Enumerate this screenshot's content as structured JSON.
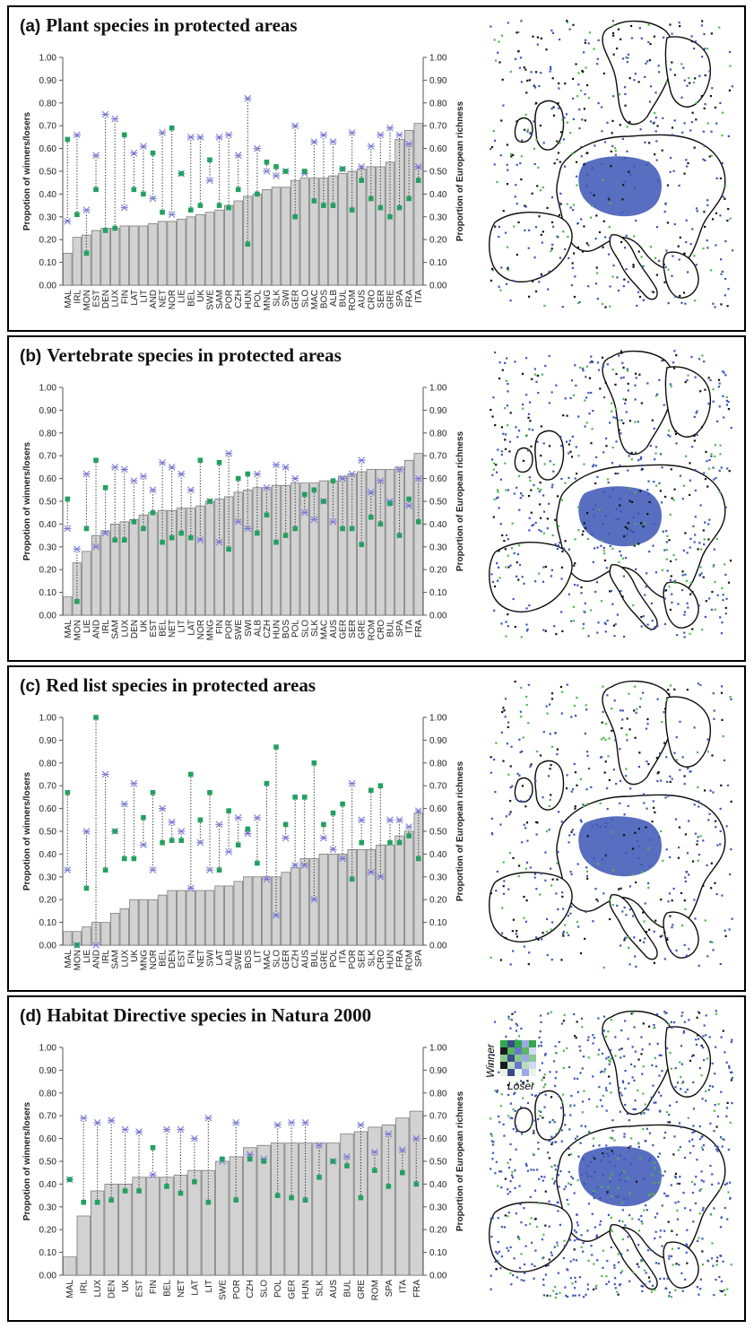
{
  "legend": {
    "winner": "Winner",
    "loser": "Loser"
  },
  "colors": {
    "bar_fill": "#d2d2d2",
    "bar_stroke": "#6e6e6e",
    "winner": "#23a060",
    "loser": "#7878d8",
    "map_blue": "#3b55b5",
    "map_green": "#4fb84a",
    "map_outline": "#0c0c0c"
  },
  "icons": {
    "winner_marker": "green-square-marker",
    "loser_marker": "blue-asterisk-marker"
  },
  "chart_data": [
    {
      "type": "bar",
      "label": "(a)",
      "title": "Plant species in protected areas",
      "ylabel": "Propotion of winners/losers",
      "y2label": "Proportion of European richness",
      "ylim": [
        0,
        1
      ],
      "yticks": [
        "0.00",
        "0.10",
        "0.20",
        "0.30",
        "0.40",
        "0.50",
        "0.60",
        "0.70",
        "0.80",
        "0.90",
        "1.00"
      ],
      "categories": [
        "MAL",
        "IRL",
        "MON",
        "EST",
        "DEN",
        "LUX",
        "FIN",
        "LAT",
        "LIT",
        "AND",
        "NET",
        "NOR",
        "LIE",
        "BEL",
        "UK",
        "SWE",
        "SAM",
        "POR",
        "CZH",
        "HUN",
        "POL",
        "MNG",
        "SLK",
        "SWI",
        "GER",
        "SLO",
        "MAC",
        "BOS",
        "ALB",
        "BUL",
        "ROM",
        "AUS",
        "CRO",
        "SER",
        "GRE",
        "SPA",
        "FRA",
        "ITA"
      ],
      "series": [
        {
          "values": [
            0.14,
            0.21,
            0.22,
            0.24,
            0.25,
            0.25,
            0.26,
            0.26,
            0.26,
            0.27,
            0.28,
            0.28,
            0.29,
            0.3,
            0.31,
            0.32,
            0.33,
            0.35,
            0.37,
            0.39,
            0.4,
            0.42,
            0.43,
            0.43,
            0.46,
            0.47,
            0.47,
            0.47,
            0.48,
            0.49,
            0.5,
            0.51,
            0.52,
            0.52,
            0.54,
            0.64,
            0.68,
            0.71
          ]
        },
        {
          "values": [
            0.64,
            0.31,
            0.14,
            0.42,
            0.24,
            0.25,
            0.66,
            0.42,
            0.4,
            0.58,
            0.32,
            0.69,
            0.49,
            0.33,
            0.35,
            0.55,
            0.35,
            0.34,
            0.42,
            0.18,
            0.4,
            0.54,
            0.52,
            0.5,
            0.3,
            0.5,
            0.37,
            0.35,
            0.35,
            0.51,
            0.33,
            0.46,
            0.38,
            0.34,
            0.3,
            0.34,
            0.38,
            0.46
          ]
        },
        {
          "values": [
            0.28,
            0.66,
            0.33,
            0.57,
            0.75,
            0.73,
            0.34,
            0.58,
            0.61,
            0.38,
            0.67,
            0.31,
            0.49,
            0.65,
            0.65,
            0.46,
            0.65,
            0.66,
            0.57,
            0.82,
            0.6,
            0.5,
            0.48,
            0.5,
            0.7,
            0.49,
            0.63,
            0.66,
            0.63,
            0.51,
            0.67,
            0.52,
            0.61,
            0.66,
            0.69,
            0.66,
            0.62,
            0.52
          ]
        }
      ]
    },
    {
      "type": "bar",
      "label": "(b)",
      "title": "Vertebrate species in protected areas",
      "ylabel": "Propotion of winners/losers",
      "y2label": "Proportion of European richness",
      "ylim": [
        0,
        1
      ],
      "yticks": [
        "0.00",
        "0.10",
        "0.20",
        "0.30",
        "0.40",
        "0.50",
        "0.60",
        "0.70",
        "0.80",
        "0.90",
        "1.00"
      ],
      "categories": [
        "MAL",
        "MON",
        "LIE",
        "AND",
        "IRL",
        "SAM",
        "LUX",
        "DEN",
        "UK",
        "EST",
        "BEL",
        "NET",
        "LIT",
        "LAT",
        "NOR",
        "MNG",
        "FIN",
        "POR",
        "SWE",
        "SWI",
        "ALB",
        "CZH",
        "HUN",
        "BOS",
        "POL",
        "SLO",
        "SLK",
        "MAC",
        "AUS",
        "GER",
        "SER",
        "GRE",
        "ROM",
        "CRO",
        "BUL",
        "SPA",
        "ITA",
        "FRA"
      ],
      "series": [
        {
          "values": [
            0.08,
            0.23,
            0.28,
            0.35,
            0.37,
            0.4,
            0.41,
            0.42,
            0.44,
            0.45,
            0.46,
            0.46,
            0.47,
            0.47,
            0.48,
            0.5,
            0.51,
            0.52,
            0.54,
            0.55,
            0.56,
            0.56,
            0.57,
            0.57,
            0.58,
            0.58,
            0.58,
            0.59,
            0.59,
            0.61,
            0.62,
            0.63,
            0.64,
            0.64,
            0.64,
            0.65,
            0.68,
            0.71
          ]
        },
        {
          "values": [
            0.51,
            0.06,
            0.38,
            0.68,
            0.56,
            0.33,
            0.33,
            0.41,
            0.38,
            0.45,
            0.32,
            0.34,
            0.36,
            0.34,
            0.68,
            0.5,
            0.67,
            0.29,
            0.6,
            0.62,
            0.36,
            0.44,
            0.32,
            0.35,
            0.38,
            0.53,
            0.55,
            0.5,
            0.59,
            0.38,
            0.38,
            0.31,
            0.43,
            0.4,
            0.49,
            0.35,
            0.51,
            0.41
          ]
        },
        {
          "values": [
            0.38,
            0.29,
            0.62,
            0.3,
            0.36,
            0.65,
            0.64,
            0.59,
            0.61,
            0.55,
            0.67,
            0.65,
            0.62,
            0.55,
            0.33,
            0.5,
            0.32,
            0.71,
            0.41,
            0.38,
            0.62,
            0.56,
            0.66,
            0.65,
            0.6,
            0.45,
            0.42,
            0.5,
            0.41,
            0.6,
            0.62,
            0.68,
            0.54,
            0.59,
            0.5,
            0.64,
            0.48,
            0.6
          ]
        }
      ]
    },
    {
      "type": "bar",
      "label": "(c)",
      "title": "Red list species in protected areas",
      "ylabel": "Propotion of winners/losers",
      "y2label": "Proportion of European richness",
      "ylim": [
        0,
        1
      ],
      "yticks": [
        "0.00",
        "0.10",
        "0.20",
        "0.30",
        "0.40",
        "0.50",
        "0.60",
        "0.70",
        "0.80",
        "0.90",
        "1.00"
      ],
      "categories": [
        "MAL",
        "MON",
        "LIE",
        "AND",
        "IRL",
        "SAM",
        "LUX",
        "UK",
        "MNG",
        "NOR",
        "BEL",
        "DEN",
        "EST",
        "FIN",
        "NET",
        "SWI",
        "LAT",
        "ALB",
        "SWE",
        "BOS",
        "LIT",
        "MAC",
        "SLO",
        "GER",
        "CZH",
        "AUS",
        "BUL",
        "GRE",
        "POL",
        "ITA",
        "POR",
        "SER",
        "SLK",
        "CRO",
        "HUN",
        "FRA",
        "ROM",
        "SPA"
      ],
      "series": [
        {
          "values": [
            0.06,
            0.06,
            0.08,
            0.1,
            0.1,
            0.14,
            0.16,
            0.2,
            0.2,
            0.2,
            0.22,
            0.24,
            0.24,
            0.24,
            0.24,
            0.24,
            0.26,
            0.26,
            0.28,
            0.3,
            0.3,
            0.3,
            0.3,
            0.32,
            0.34,
            0.38,
            0.38,
            0.4,
            0.4,
            0.4,
            0.42,
            0.42,
            0.42,
            0.44,
            0.44,
            0.48,
            0.5,
            0.58
          ]
        },
        {
          "values": [
            0.67,
            0.0,
            0.25,
            1.0,
            0.33,
            0.5,
            0.38,
            0.38,
            0.56,
            0.67,
            0.45,
            0.46,
            0.46,
            0.75,
            0.55,
            0.67,
            0.33,
            0.59,
            0.44,
            0.51,
            0.36,
            0.71,
            0.87,
            0.53,
            0.65,
            0.65,
            0.8,
            0.53,
            0.58,
            0.62,
            0.29,
            0.45,
            0.68,
            0.7,
            0.45,
            0.45,
            0.48,
            0.38
          ]
        },
        {
          "values": [
            0.33,
            0.0,
            0.5,
            0.0,
            0.75,
            0.5,
            0.62,
            0.71,
            0.44,
            0.33,
            0.6,
            0.54,
            0.5,
            0.25,
            0.45,
            0.33,
            0.53,
            0.41,
            0.56,
            0.49,
            0.56,
            0.29,
            0.13,
            0.47,
            0.35,
            0.35,
            0.2,
            0.47,
            0.42,
            0.38,
            0.71,
            0.55,
            0.32,
            0.3,
            0.55,
            0.55,
            0.52,
            0.59
          ]
        }
      ]
    },
    {
      "type": "bar",
      "label": "(d)",
      "title": "Habitat Directive species in Natura 2000",
      "ylabel": "Propotion of winners/losers",
      "y2label": "Proportion of European richness",
      "ylim": [
        0,
        1
      ],
      "yticks": [
        "0.00",
        "0.10",
        "0.20",
        "0.30",
        "0.40",
        "0.50",
        "0.60",
        "0.70",
        "0.80",
        "0.90",
        "1.00"
      ],
      "categories": [
        "MAL",
        "IRL",
        "LUX",
        "DEN",
        "UK",
        "EST",
        "FIN",
        "BEL",
        "NET",
        "LAT",
        "LIT",
        "SWE",
        "POR",
        "CZH",
        "SLO",
        "POL",
        "GER",
        "HUN",
        "SLK",
        "AUS",
        "BUL",
        "GRE",
        "ROM",
        "SPA",
        "ITA",
        "FRA"
      ],
      "series": [
        {
          "values": [
            0.08,
            0.26,
            0.37,
            0.4,
            0.4,
            0.43,
            0.43,
            0.43,
            0.44,
            0.46,
            0.46,
            0.5,
            0.52,
            0.56,
            0.57,
            0.58,
            0.58,
            0.58,
            0.58,
            0.58,
            0.62,
            0.63,
            0.65,
            0.66,
            0.69,
            0.72
          ]
        },
        {
          "values": [
            0.42,
            0.32,
            0.32,
            0.33,
            0.37,
            0.37,
            0.56,
            0.39,
            0.36,
            0.41,
            0.32,
            0.51,
            0.33,
            0.51,
            0.5,
            0.35,
            0.34,
            0.33,
            0.43,
            0.5,
            0.48,
            0.34,
            0.46,
            0.39,
            0.45,
            0.4
          ]
        },
        {
          "values": [
            0.42,
            0.69,
            0.67,
            0.68,
            0.64,
            0.63,
            0.44,
            0.64,
            0.64,
            0.6,
            0.69,
            0.5,
            0.67,
            0.53,
            0.51,
            0.66,
            0.67,
            0.67,
            0.57,
            0.5,
            0.52,
            0.66,
            0.54,
            0.62,
            0.55,
            0.6
          ]
        }
      ]
    }
  ]
}
